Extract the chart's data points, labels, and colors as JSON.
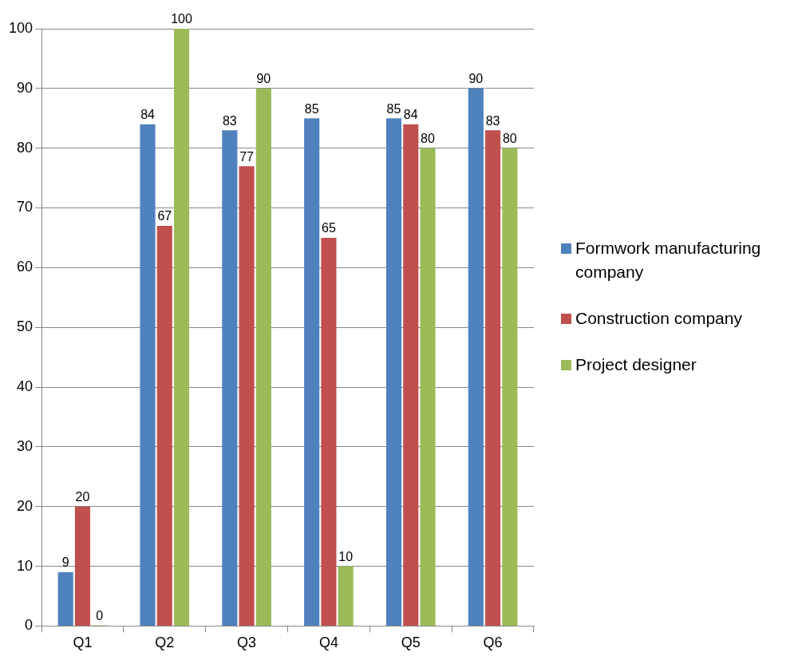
{
  "chart_data": {
    "type": "bar",
    "categories": [
      "Q1",
      "Q2",
      "Q3",
      "Q4",
      "Q5",
      "Q6"
    ],
    "series": [
      {
        "name": "Formwork manufacturing company",
        "color": "#4f81bd",
        "values": [
          9,
          84,
          83,
          85,
          85,
          90
        ]
      },
      {
        "name": "Construction company",
        "color": "#c0504d",
        "values": [
          20,
          67,
          77,
          65,
          84,
          83
        ]
      },
      {
        "name": "Project designer",
        "color": "#9bbb59",
        "values": [
          0,
          100,
          90,
          10,
          80,
          80
        ]
      }
    ],
    "ylim": [
      0,
      100
    ],
    "yticks": [
      0,
      10,
      20,
      30,
      40,
      50,
      60,
      70,
      80,
      90,
      100
    ],
    "grid": "y",
    "legend": "right",
    "data_labels": true
  }
}
